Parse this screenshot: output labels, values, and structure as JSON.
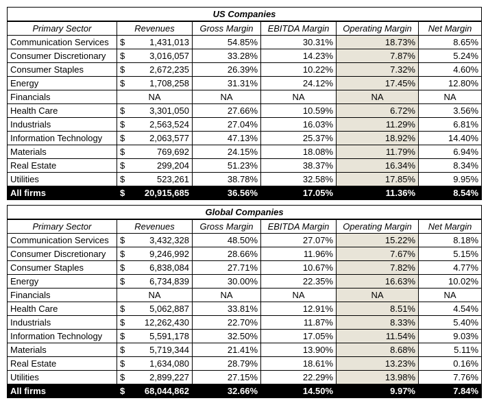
{
  "columns": [
    "Primary Sector",
    "Revenues",
    "Gross Margin",
    "EBITDA Margin",
    "Operating Margin",
    "Net Margin"
  ],
  "tables": [
    {
      "title": "US Companies",
      "rows": [
        {
          "sector": "Communication Services",
          "rev": "1,431,013",
          "gm": "54.85%",
          "em": "30.31%",
          "om": "18.73%",
          "nm": "8.65%"
        },
        {
          "sector": "Consumer Discretionary",
          "rev": "3,016,057",
          "gm": "33.28%",
          "em": "14.23%",
          "om": "7.87%",
          "nm": "5.24%"
        },
        {
          "sector": "Consumer Staples",
          "rev": "2,672,235",
          "gm": "26.39%",
          "em": "10.22%",
          "om": "7.32%",
          "nm": "4.60%"
        },
        {
          "sector": "Energy",
          "rev": "1,708,258",
          "gm": "31.31%",
          "em": "24.12%",
          "om": "17.45%",
          "nm": "12.80%"
        },
        {
          "sector": "Financials",
          "rev": "NA",
          "gm": "NA",
          "em": "NA",
          "om": "NA",
          "nm": "NA",
          "na": true
        },
        {
          "sector": "Health Care",
          "rev": "3,301,050",
          "gm": "27.66%",
          "em": "10.59%",
          "om": "6.72%",
          "nm": "3.56%"
        },
        {
          "sector": "Industrials",
          "rev": "2,563,524",
          "gm": "27.04%",
          "em": "16.03%",
          "om": "11.29%",
          "nm": "6.81%"
        },
        {
          "sector": "Information Technology",
          "rev": "2,063,577",
          "gm": "47.13%",
          "em": "25.37%",
          "om": "18.92%",
          "nm": "14.40%"
        },
        {
          "sector": "Materials",
          "rev": "769,692",
          "gm": "24.15%",
          "em": "18.08%",
          "om": "11.79%",
          "nm": "6.94%"
        },
        {
          "sector": "Real Estate",
          "rev": "299,204",
          "gm": "51.23%",
          "em": "38.37%",
          "om": "16.34%",
          "nm": "8.34%"
        },
        {
          "sector": "Utilities",
          "rev": "523,261",
          "gm": "38.78%",
          "em": "32.58%",
          "om": "17.85%",
          "nm": "9.95%"
        }
      ],
      "total": {
        "sector": "All firms",
        "rev": "20,915,685",
        "gm": "36.56%",
        "em": "17.05%",
        "om": "11.36%",
        "nm": "8.54%"
      }
    },
    {
      "title": "Global Companies",
      "rows": [
        {
          "sector": "Communication Services",
          "rev": "3,432,328",
          "gm": "48.50%",
          "em": "27.07%",
          "om": "15.22%",
          "nm": "8.18%"
        },
        {
          "sector": "Consumer Discretionary",
          "rev": "9,246,992",
          "gm": "28.66%",
          "em": "11.96%",
          "om": "7.67%",
          "nm": "5.15%"
        },
        {
          "sector": "Consumer Staples",
          "rev": "6,838,084",
          "gm": "27.71%",
          "em": "10.67%",
          "om": "7.82%",
          "nm": "4.77%"
        },
        {
          "sector": "Energy",
          "rev": "6,734,839",
          "gm": "30.00%",
          "em": "22.35%",
          "om": "16.63%",
          "nm": "10.02%"
        },
        {
          "sector": "Financials",
          "rev": "NA",
          "gm": "NA",
          "em": "NA",
          "om": "NA",
          "nm": "NA",
          "na": true
        },
        {
          "sector": "Health Care",
          "rev": "5,062,887",
          "gm": "33.81%",
          "em": "12.91%",
          "om": "8.51%",
          "nm": "4.54%"
        },
        {
          "sector": "Industrials",
          "rev": "12,262,430",
          "gm": "22.70%",
          "em": "11.87%",
          "om": "8.33%",
          "nm": "5.40%"
        },
        {
          "sector": "Information Technology",
          "rev": "5,591,178",
          "gm": "32.50%",
          "em": "17.05%",
          "om": "11.54%",
          "nm": "9.03%"
        },
        {
          "sector": "Materials",
          "rev": "5,719,344",
          "gm": "21.41%",
          "em": "13.90%",
          "om": "8.68%",
          "nm": "5.11%"
        },
        {
          "sector": "Real Estate",
          "rev": "1,634,080",
          "gm": "28.79%",
          "em": "18.61%",
          "om": "13.23%",
          "nm": "0.16%"
        },
        {
          "sector": "Utilities",
          "rev": "2,899,227",
          "gm": "27.15%",
          "em": "22.29%",
          "om": "13.98%",
          "nm": "7.76%"
        }
      ],
      "total": {
        "sector": "All firms",
        "rev": "68,044,862",
        "gm": "32.66%",
        "em": "14.50%",
        "om": "9.97%",
        "nm": "7.84%"
      }
    }
  ]
}
